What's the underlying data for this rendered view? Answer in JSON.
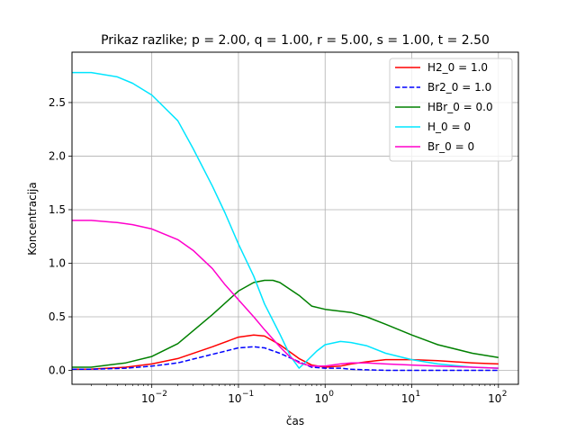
{
  "chart_data": {
    "type": "line",
    "title": "Prikaz razlike; p = 2.00, q = 1.00, r = 5.00, s = 1.00, t = 2.50",
    "xlabel": "čas",
    "ylabel": "Koncentracija",
    "xscale": "log",
    "xlim": [
      0.0012,
      170
    ],
    "ylim": [
      -0.13,
      2.97
    ],
    "grid": true,
    "legend_position": "top-right",
    "x_ticks": [
      {
        "value": 0.01,
        "label": "10",
        "exp": "−2"
      },
      {
        "value": 0.1,
        "label": "10",
        "exp": "−1"
      },
      {
        "value": 1,
        "label": "10",
        "exp": "0"
      },
      {
        "value": 10,
        "label": "10",
        "exp": "1"
      },
      {
        "value": 100,
        "label": "10",
        "exp": "2"
      }
    ],
    "y_ticks": [
      {
        "value": 0.0,
        "label": "0.0"
      },
      {
        "value": 0.5,
        "label": "0.5"
      },
      {
        "value": 1.0,
        "label": "1.0"
      },
      {
        "value": 1.5,
        "label": "1.5"
      },
      {
        "value": 2.0,
        "label": "2.0"
      },
      {
        "value": 2.5,
        "label": "2.5"
      }
    ],
    "series": [
      {
        "name": "H2_0 = 1.0",
        "color": "#ff0000",
        "dash": "solid",
        "x": [
          0.0012,
          0.002,
          0.005,
          0.01,
          0.02,
          0.05,
          0.1,
          0.15,
          0.2,
          0.3,
          0.5,
          0.7,
          1,
          1.5,
          2,
          3,
          5,
          10,
          20,
          50,
          100
        ],
        "y": [
          0.01,
          0.012,
          0.03,
          0.06,
          0.11,
          0.22,
          0.31,
          0.33,
          0.32,
          0.24,
          0.11,
          0.05,
          0.03,
          0.04,
          0.06,
          0.08,
          0.1,
          0.1,
          0.09,
          0.07,
          0.06
        ]
      },
      {
        "name": " Br2_0 = 1.0",
        "color": "#0000ff",
        "dash": "dashed",
        "x": [
          0.0012,
          0.002,
          0.005,
          0.01,
          0.02,
          0.05,
          0.1,
          0.15,
          0.2,
          0.3,
          0.5,
          0.7,
          1,
          1.5,
          2,
          3,
          5,
          10,
          20,
          50,
          100
        ],
        "y": [
          0.01,
          0.01,
          0.02,
          0.04,
          0.07,
          0.15,
          0.21,
          0.22,
          0.21,
          0.16,
          0.08,
          0.03,
          0.02,
          0.02,
          0.01,
          0.005,
          0.0,
          0.0,
          0.0,
          0.0,
          0.0
        ]
      },
      {
        "name": "HBr_0 = 0.0",
        "color": "#008000",
        "dash": "solid",
        "x": [
          0.0012,
          0.002,
          0.005,
          0.01,
          0.02,
          0.05,
          0.1,
          0.15,
          0.2,
          0.25,
          0.3,
          0.5,
          0.7,
          1,
          2,
          3,
          5,
          10,
          20,
          50,
          100
        ],
        "y": [
          0.03,
          0.03,
          0.07,
          0.13,
          0.25,
          0.52,
          0.74,
          0.82,
          0.84,
          0.84,
          0.82,
          0.7,
          0.6,
          0.57,
          0.54,
          0.5,
          0.43,
          0.33,
          0.24,
          0.16,
          0.12
        ]
      },
      {
        "name": "H_0 = 0",
        "color": "#00e5ff",
        "dash": "solid",
        "x": [
          0.0012,
          0.002,
          0.004,
          0.006,
          0.01,
          0.02,
          0.03,
          0.05,
          0.07,
          0.1,
          0.15,
          0.2,
          0.3,
          0.4,
          0.5,
          0.6,
          0.8,
          1,
          1.5,
          2,
          3,
          5,
          10,
          20,
          50,
          100
        ],
        "y": [
          2.78,
          2.78,
          2.74,
          2.68,
          2.57,
          2.33,
          2.07,
          1.72,
          1.47,
          1.18,
          0.88,
          0.62,
          0.34,
          0.13,
          0.02,
          0.08,
          0.18,
          0.24,
          0.27,
          0.26,
          0.23,
          0.16,
          0.1,
          0.06,
          0.03,
          0.02
        ]
      },
      {
        "name": "Br_0 = 0",
        "color": "#ff00cc",
        "dash": "solid",
        "x": [
          0.0012,
          0.002,
          0.004,
          0.006,
          0.01,
          0.02,
          0.03,
          0.05,
          0.07,
          0.1,
          0.15,
          0.2,
          0.3,
          0.4,
          0.5,
          0.7,
          1,
          1.5,
          2,
          3,
          5,
          10,
          20,
          50,
          100
        ],
        "y": [
          1.4,
          1.4,
          1.38,
          1.36,
          1.32,
          1.22,
          1.12,
          0.95,
          0.8,
          0.66,
          0.5,
          0.38,
          0.22,
          0.12,
          0.07,
          0.04,
          0.04,
          0.06,
          0.07,
          0.07,
          0.06,
          0.05,
          0.04,
          0.03,
          0.02
        ]
      }
    ]
  }
}
